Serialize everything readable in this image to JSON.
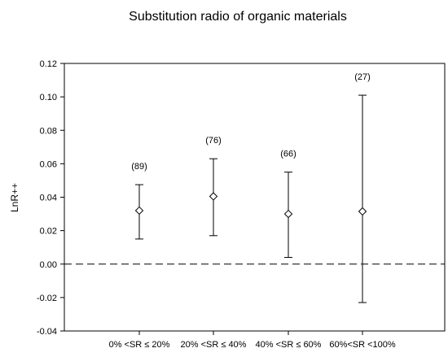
{
  "chart_data": {
    "type": "scatter",
    "title": "Substitution radio of organic materials",
    "xlabel": "",
    "ylabel": "LnR++",
    "ylim": [
      -0.04,
      0.12
    ],
    "yticks": [
      "-0.04",
      "-0.02",
      "0.00",
      "0.02",
      "0.04",
      "0.06",
      "0.08",
      "0.10",
      "0.12"
    ],
    "reference_line": {
      "y": 0.0,
      "style": "dashed"
    },
    "grid": false,
    "categories": [
      "0% <SR ≤ 20%",
      "20% <SR ≤ 40%",
      "40% <SR ≤ 60%",
      "60%<SR <100%"
    ],
    "points": [
      {
        "category": "0% <SR ≤ 20%",
        "y": 0.032,
        "lower": 0.015,
        "upper": 0.0475,
        "n_label": "(89)"
      },
      {
        "category": "20% <SR ≤ 40%",
        "y": 0.0405,
        "lower": 0.017,
        "upper": 0.063,
        "n_label": "(76)"
      },
      {
        "category": "40% <SR ≤ 60%",
        "y": 0.03,
        "lower": 0.004,
        "upper": 0.055,
        "n_label": "(66)"
      },
      {
        "category": "60%<SR <100%",
        "y": 0.0315,
        "lower": -0.023,
        "upper": 0.101,
        "n_label": "(27)"
      }
    ]
  }
}
